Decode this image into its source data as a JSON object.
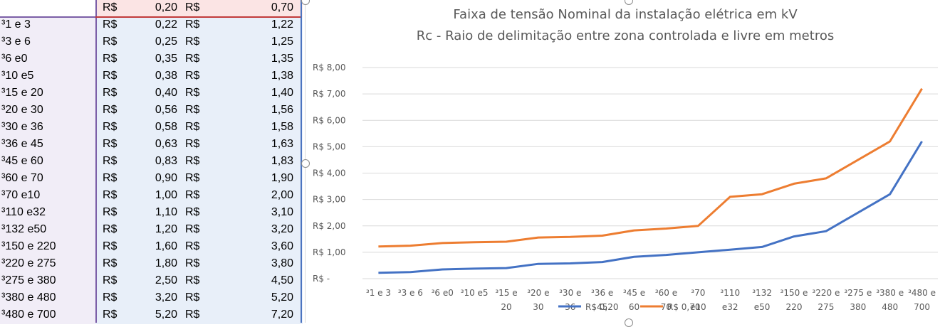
{
  "sheet": {
    "rows": [
      {
        "label": "",
        "c1": "R$",
        "v1": "0,20",
        "c2": "R$",
        "v2": "0,70"
      },
      {
        "label": "³1 e 3",
        "c1": "R$",
        "v1": "0,22",
        "c2": "R$",
        "v2": "1,22"
      },
      {
        "label": "³3 e 6",
        "c1": "R$",
        "v1": "0,25",
        "c2": "R$",
        "v2": "1,25"
      },
      {
        "label": "³6 e0",
        "c1": "R$",
        "v1": "0,35",
        "c2": "R$",
        "v2": "1,35"
      },
      {
        "label": "³10 e5",
        "c1": "R$",
        "v1": "0,38",
        "c2": "R$",
        "v2": "1,38"
      },
      {
        "label": "³15 e 20",
        "c1": "R$",
        "v1": "0,40",
        "c2": "R$",
        "v2": "1,40"
      },
      {
        "label": "³20 e 30",
        "c1": "R$",
        "v1": "0,56",
        "c2": "R$",
        "v2": "1,56"
      },
      {
        "label": "³30 e 36",
        "c1": "R$",
        "v1": "0,58",
        "c2": "R$",
        "v2": "1,58"
      },
      {
        "label": "³36 e 45",
        "c1": "R$",
        "v1": "0,63",
        "c2": "R$",
        "v2": "1,63"
      },
      {
        "label": "³45 e 60",
        "c1": "R$",
        "v1": "0,83",
        "c2": "R$",
        "v2": "1,83"
      },
      {
        "label": "³60 e 70",
        "c1": "R$",
        "v1": "0,90",
        "c2": "R$",
        "v2": "1,90"
      },
      {
        "label": "³70 e10",
        "c1": "R$",
        "v1": "1,00",
        "c2": "R$",
        "v2": "2,00"
      },
      {
        "label": "³110 e32",
        "c1": "R$",
        "v1": "1,10",
        "c2": "R$",
        "v2": "3,10"
      },
      {
        "label": "³132 e50",
        "c1": "R$",
        "v1": "1,20",
        "c2": "R$",
        "v2": "3,20"
      },
      {
        "label": "³150 e 220",
        "c1": "R$",
        "v1": "1,60",
        "c2": "R$",
        "v2": "3,60"
      },
      {
        "label": "³220 e 275",
        "c1": "R$",
        "v1": "1,80",
        "c2": "R$",
        "v2": "3,80"
      },
      {
        "label": "³275 e 380",
        "c1": "R$",
        "v1": "2,50",
        "c2": "R$",
        "v2": "4,50"
      },
      {
        "label": "³380 e 480",
        "c1": "R$",
        "v1": "3,20",
        "c2": "R$",
        "v2": "5,20"
      },
      {
        "label": "³480 e 700",
        "c1": "R$",
        "v1": "5,20",
        "c2": "R$",
        "v2": "7,20"
      }
    ]
  },
  "chart_data": {
    "type": "line",
    "title": "Faixa de tensão Nominal da instalação elétrica em kV",
    "subtitle": "Rc - Raio de delimitação entre zona controlada e livre em metros",
    "categories": [
      [
        "³1 e 3"
      ],
      [
        "³3 e 6"
      ],
      [
        "³6 e0"
      ],
      [
        "³10 e5"
      ],
      [
        "³15 e",
        "20"
      ],
      [
        "³20 e",
        "30"
      ],
      [
        "³30 e",
        "36"
      ],
      [
        "³36 e",
        "45"
      ],
      [
        "³45 e",
        "60"
      ],
      [
        "³60 e",
        "70"
      ],
      [
        "³70",
        "e10"
      ],
      [
        "³110",
        "e32"
      ],
      [
        "³132",
        "e50"
      ],
      [
        "³150 e",
        "220"
      ],
      [
        "³220 e",
        "275"
      ],
      [
        "³275 e",
        "380"
      ],
      [
        "³380 e",
        "480"
      ],
      [
        "³480 e",
        "700"
      ]
    ],
    "y_tick_labels": [
      "R$ -",
      "R$ 1,00",
      "R$ 2,00",
      "R$ 3,00",
      "R$ 4,00",
      "R$ 5,00",
      "R$ 6,00",
      "R$ 7,00",
      "R$ 8,00"
    ],
    "ylim": [
      0,
      8
    ],
    "grid": true,
    "legend_position": "bottom",
    "series": [
      {
        "name": "R$ 0,20",
        "color": "#4472c4",
        "values": [
          0.22,
          0.25,
          0.35,
          0.38,
          0.4,
          0.56,
          0.58,
          0.63,
          0.83,
          0.9,
          1.0,
          1.1,
          1.2,
          1.6,
          1.8,
          2.5,
          3.2,
          5.2
        ]
      },
      {
        "name": "R$ 0,70",
        "color": "#ed7d31",
        "values": [
          1.22,
          1.25,
          1.35,
          1.38,
          1.4,
          1.56,
          1.58,
          1.63,
          1.83,
          1.9,
          2.0,
          3.1,
          3.2,
          3.6,
          3.8,
          4.5,
          5.2,
          7.2
        ]
      }
    ]
  }
}
